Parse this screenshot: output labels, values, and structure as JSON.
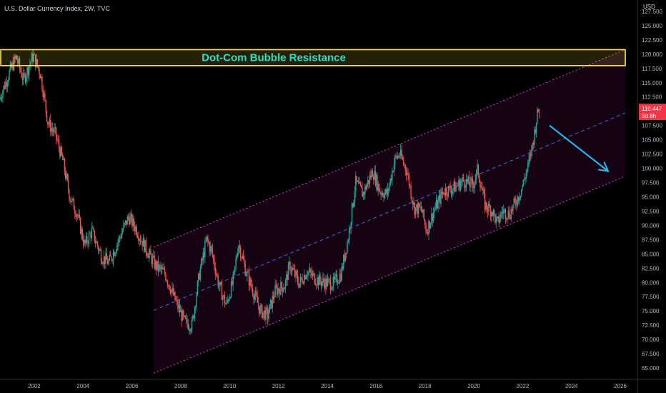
{
  "header": {
    "symbol": "U.S. Dollar Currency Index, 2W, TVC"
  },
  "chart_data": {
    "type": "candlestick",
    "price_scale_unit": "USD",
    "ylim": [
      63.0,
      129.5
    ],
    "xlim": [
      2000.6,
      2026.7
    ],
    "grid": false,
    "y_ticks": [
      "65.000",
      "67.500",
      "70.000",
      "72.500",
      "75.000",
      "77.500",
      "80.000",
      "82.500",
      "85.000",
      "87.500",
      "90.000",
      "92.500",
      "95.000",
      "97.500",
      "100.000",
      "102.500",
      "105.000",
      "107.500",
      "110.000",
      "112.500",
      "115.000",
      "117.500",
      "120.000",
      "122.500",
      "125.000",
      "127.500"
    ],
    "x_ticks": [
      "2002",
      "2004",
      "2006",
      "2008",
      "2010",
      "2012",
      "2014",
      "2016",
      "2018",
      "2020",
      "2022",
      "2024",
      "2026"
    ],
    "last_price": {
      "value": 110.447,
      "label": "110.447",
      "countdown": "3d 8h"
    },
    "price_path": [
      [
        2000.6,
        112.0
      ],
      [
        2001.0,
        116.5
      ],
      [
        2001.3,
        119.5
      ],
      [
        2001.6,
        115.5
      ],
      [
        2002.0,
        119.8
      ],
      [
        2002.3,
        116.5
      ],
      [
        2002.6,
        108.0
      ],
      [
        2002.9,
        106.0
      ],
      [
        2003.2,
        101.5
      ],
      [
        2003.5,
        95.0
      ],
      [
        2003.8,
        92.0
      ],
      [
        2004.1,
        86.5
      ],
      [
        2004.4,
        89.0
      ],
      [
        2004.8,
        84.5
      ],
      [
        2005.1,
        83.5
      ],
      [
        2005.5,
        87.5
      ],
      [
        2005.9,
        91.5
      ],
      [
        2006.2,
        89.5
      ],
      [
        2006.6,
        86.0
      ],
      [
        2007.0,
        83.0
      ],
      [
        2007.4,
        81.5
      ],
      [
        2007.8,
        77.0
      ],
      [
        2008.2,
        73.0
      ],
      [
        2008.5,
        72.5
      ],
      [
        2008.8,
        81.5
      ],
      [
        2009.1,
        87.5
      ],
      [
        2009.3,
        85.5
      ],
      [
        2009.6,
        79.5
      ],
      [
        2009.9,
        76.0
      ],
      [
        2010.2,
        80.5
      ],
      [
        2010.4,
        87.0
      ],
      [
        2010.7,
        82.0
      ],
      [
        2011.0,
        78.5
      ],
      [
        2011.3,
        75.0
      ],
      [
        2011.6,
        74.2
      ],
      [
        2011.9,
        78.5
      ],
      [
        2012.3,
        79.5
      ],
      [
        2012.5,
        83.0
      ],
      [
        2012.9,
        79.8
      ],
      [
        2013.2,
        82.0
      ],
      [
        2013.6,
        80.5
      ],
      [
        2013.9,
        80.0
      ],
      [
        2014.3,
        79.8
      ],
      [
        2014.6,
        81.5
      ],
      [
        2014.9,
        88.0
      ],
      [
        2015.2,
        97.5
      ],
      [
        2015.5,
        95.5
      ],
      [
        2015.9,
        99.5
      ],
      [
        2016.2,
        96.0
      ],
      [
        2016.5,
        95.5
      ],
      [
        2016.8,
        101.5
      ],
      [
        2017.0,
        102.5
      ],
      [
        2017.3,
        99.5
      ],
      [
        2017.6,
        93.0
      ],
      [
        2017.9,
        92.8
      ],
      [
        2018.1,
        89.0
      ],
      [
        2018.4,
        92.5
      ],
      [
        2018.8,
        96.0
      ],
      [
        2019.2,
        96.5
      ],
      [
        2019.6,
        97.8
      ],
      [
        2020.0,
        97.0
      ],
      [
        2020.2,
        99.8
      ],
      [
        2020.5,
        93.5
      ],
      [
        2020.8,
        92.5
      ],
      [
        2021.0,
        90.2
      ],
      [
        2021.2,
        92.5
      ],
      [
        2021.5,
        92.0
      ],
      [
        2021.8,
        94.5
      ],
      [
        2022.0,
        96.5
      ],
      [
        2022.3,
        101.0
      ],
      [
        2022.5,
        105.5
      ],
      [
        2022.6,
        108.5
      ],
      [
        2022.7,
        110.447
      ]
    ]
  },
  "annotations": {
    "resistance_zone": {
      "label": "Dot-Com Bubble Resistance",
      "y_low": 118.0,
      "y_high": 120.8,
      "color": "#ffeb3b",
      "text_color": "#26e0c5"
    },
    "channel": {
      "start_x": 2006.9,
      "end_x": 2026.2,
      "upper_start": 86.2,
      "upper_end": 120.8,
      "mid_start": 75.1,
      "mid_end": 109.7,
      "lower_start": 64.1,
      "lower_end": 98.6,
      "line_color": "#d946d9",
      "mid_color": "#5b5bd6",
      "fill": "#a0178f"
    },
    "arrow": {
      "from": [
        2023.1,
        107.5
      ],
      "to": [
        2025.5,
        99.5
      ],
      "color": "#27b3e8"
    }
  },
  "colors": {
    "up": "#26a69a",
    "down": "#ef5350",
    "axis_text": "#b2b5be",
    "price_tag": "#f23645",
    "background": "#000000"
  }
}
